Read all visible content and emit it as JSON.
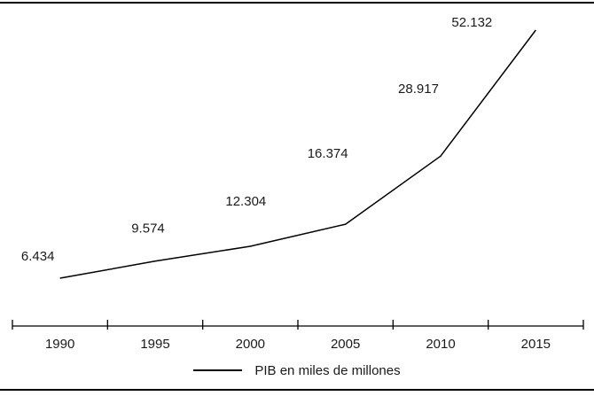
{
  "chart_data": {
    "type": "line",
    "categories": [
      "1990",
      "1995",
      "2000",
      "2005",
      "2010",
      "2015"
    ],
    "series": [
      {
        "name": "PIB en miles de millones",
        "values": [
          6434,
          9574,
          12304,
          16374,
          28917,
          52132
        ],
        "point_labels": [
          "6.434",
          "9.574",
          "12.304",
          "16.374",
          "28.917",
          "52.132"
        ],
        "color": "#000000"
      }
    ],
    "title": "",
    "xlabel": "",
    "ylabel": "",
    "y_axis_visible": false,
    "grid": false,
    "legend_position": "bottom-center",
    "tick_style": "cross"
  },
  "colors": {
    "line": "#000000",
    "axis": "#000000",
    "text": "#1a1a1a",
    "background": "#ffffff",
    "frame_rule": "#000000"
  }
}
